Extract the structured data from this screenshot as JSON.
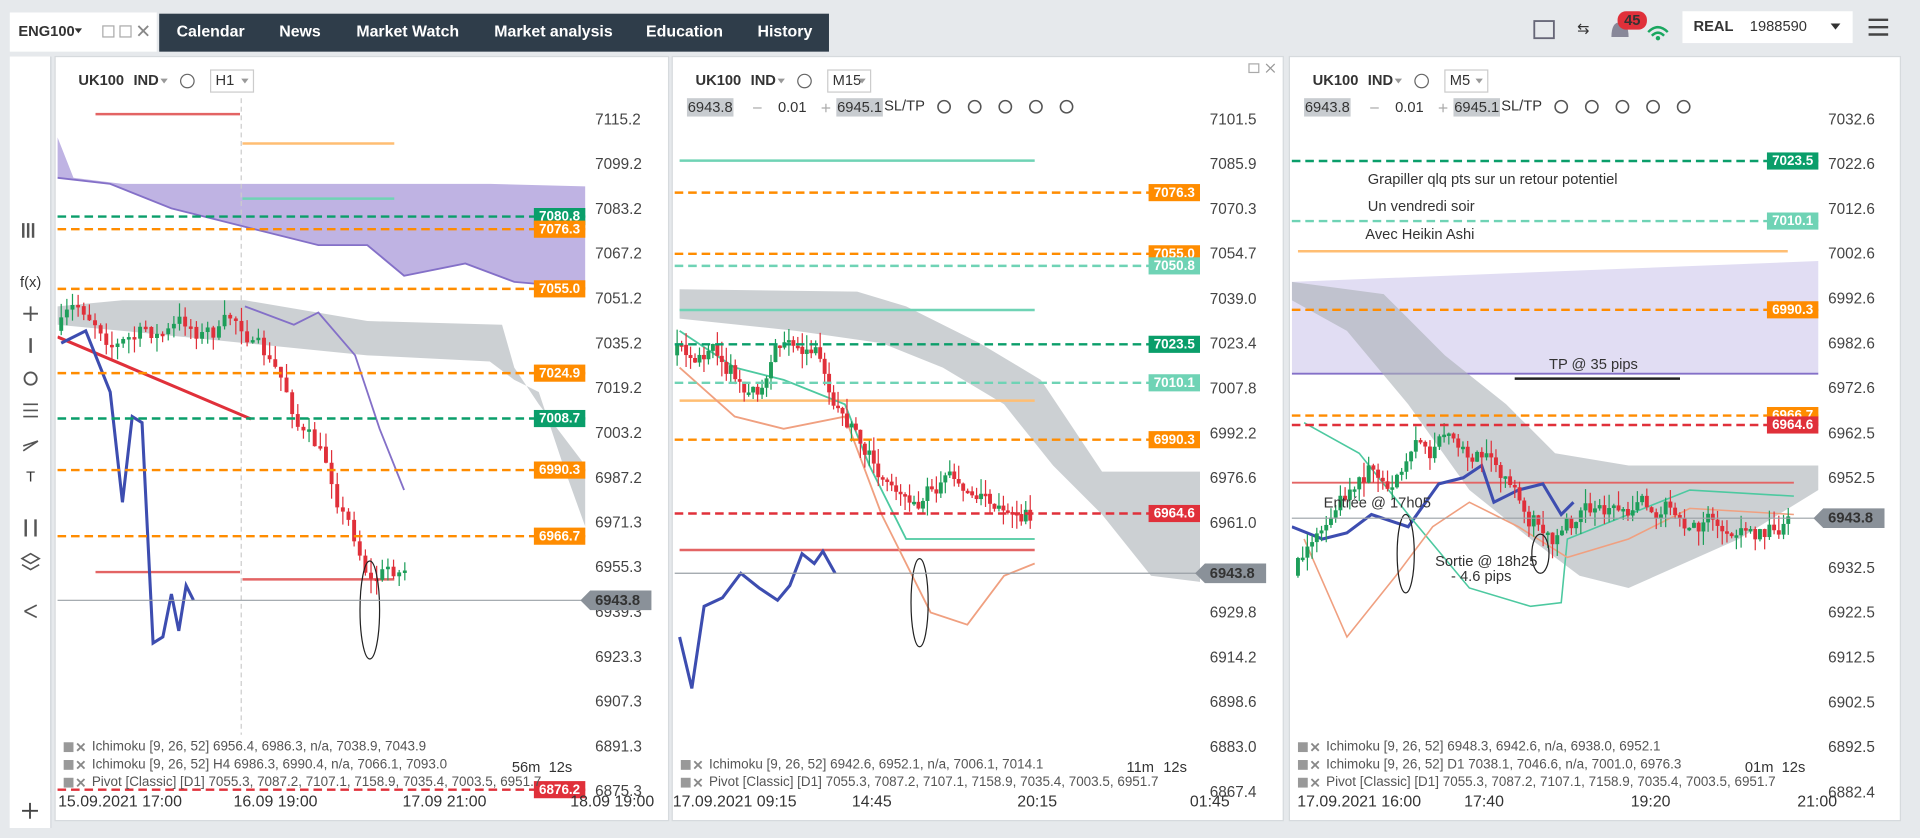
{
  "header": {
    "account": "ENG100",
    "nav": [
      "Calendar",
      "News",
      "Market Watch",
      "Market analysis",
      "Education",
      "History"
    ],
    "notifications": "45",
    "account_type": "REAL",
    "balance": "1988590"
  },
  "toolbar": {
    "function": "f(x)",
    "text_tool": "T"
  },
  "panels": [
    {
      "symbol": "UK100",
      "tag": "IND",
      "timeframe": "H1",
      "axis_labels": [
        "7115.2",
        "7099.2",
        "7083.2",
        "7067.2",
        "7051.2",
        "7035.2",
        "7019.2",
        "7003.2",
        "6987.2",
        "6971.3",
        "6955.3",
        "6939.3",
        "6923.3",
        "6907.3",
        "6891.3",
        "6875.3"
      ],
      "levels": [
        {
          "label": "7080.8",
          "kind": "green"
        },
        {
          "label": "7076.3",
          "kind": "orange"
        },
        {
          "label": "7055.0",
          "kind": "orange"
        },
        {
          "label": "7024.9",
          "kind": "orange"
        },
        {
          "label": "7008.7",
          "kind": "green"
        },
        {
          "label": "6990.3",
          "kind": "orange"
        },
        {
          "label": "6966.7",
          "kind": "orange"
        },
        {
          "label": "6876.2",
          "kind": "red"
        }
      ],
      "current_price": "6943.8",
      "time_labels": [
        "15.09.2021 17:00",
        "16.09 19:00",
        "17.09 21:00",
        "18.09 19:00"
      ],
      "indicators": [
        "Ichimoku [9, 26, 52] 6956.4, 6986.3, n/a, 7038.9, 7043.9",
        "Ichimoku [9, 26, 52] H4 6986.3, 6990.4, n/a, 7066.1, 7093.0",
        "Pivot [Classic] [D1] 7055.3, 7087.2, 7107.1, 7158.9, 7035.4, 7003.5, 6951.7"
      ],
      "countdown": [
        "56m",
        "12s"
      ]
    },
    {
      "symbol": "UK100",
      "tag": "IND",
      "timeframe": "M15",
      "order": {
        "bid": "6943.8",
        "lot": "0.01",
        "ask": "6945.1",
        "sltp": "SL/TP"
      },
      "axis_labels": [
        "7101.5",
        "7085.9",
        "7070.3",
        "7054.7",
        "7039.0",
        "7023.4",
        "7007.8",
        "6992.2",
        "6976.6",
        "6961.0",
        "6929.8",
        "6914.2",
        "6898.6",
        "6883.0",
        "6867.4"
      ],
      "levels": [
        {
          "label": "7076.3",
          "kind": "orange"
        },
        {
          "label": "7055.0",
          "kind": "orange"
        },
        {
          "label": "7050.8",
          "kind": "teal"
        },
        {
          "label": "7023.5",
          "kind": "green"
        },
        {
          "label": "7010.1",
          "kind": "teal"
        },
        {
          "label": "6990.3",
          "kind": "orange"
        },
        {
          "label": "6964.6",
          "kind": "red"
        }
      ],
      "current_price": "6943.8",
      "time_labels": [
        "17.09.2021 09:15",
        "14:45",
        "20:15",
        "01:45"
      ],
      "indicators": [
        "Ichimoku [9, 26, 52] 6942.6, 6952.1, n/a, 7006.1, 7014.1",
        "Pivot [Classic] [D1] 7055.3, 7087.2, 7107.1, 7158.9, 7035.4, 7003.5, 6951.7"
      ],
      "countdown": [
        "11m",
        "12s"
      ]
    },
    {
      "symbol": "UK100",
      "tag": "IND",
      "timeframe": "M5",
      "order": {
        "bid": "6943.8",
        "lot": "0.01",
        "ask": "6945.1",
        "sltp": "SL/TP"
      },
      "axis_labels": [
        "7032.6",
        "7022.6",
        "7012.6",
        "7002.6",
        "6992.6",
        "6982.6",
        "6972.6",
        "6962.5",
        "6952.5",
        "6932.5",
        "6922.5",
        "6912.5",
        "6902.5",
        "6892.5",
        "6882.4"
      ],
      "levels": [
        {
          "label": "7023.5",
          "kind": "green"
        },
        {
          "label": "7010.1",
          "kind": "teal"
        },
        {
          "label": "6990.3",
          "kind": "orange"
        },
        {
          "label": "6966.7",
          "kind": "orange"
        },
        {
          "label": "6964.6",
          "kind": "red"
        }
      ],
      "current_price": "6943.8",
      "time_labels": [
        "17.09.2021 16:00",
        "17:40",
        "19:20",
        "21:00"
      ],
      "indicators": [
        "Ichimoku [9, 26, 52] 6948.3, 6942.6, n/a, 6938.0, 6952.1",
        "Ichimoku [9, 26, 52] D1 7038.1, 7046.6, n/a, 7001.0, 6976.3",
        "Pivot [Classic] [D1] 7055.3, 7087.2, 7107.1, 7158.9, 7035.4, 7003.5, 6951.7"
      ],
      "countdown": [
        "01m",
        "12s"
      ],
      "annotations": {
        "title": [
          "Grapiller qlq pts sur un retour potentiel",
          "Un vendredi soir",
          "Avec Heikin Ashi"
        ],
        "tp": "TP @ 35 pips",
        "entry": "Entrée @ 17h05",
        "exit": [
          "Sortie @ 18h25",
          "- 4.6 pips"
        ]
      }
    }
  ]
}
